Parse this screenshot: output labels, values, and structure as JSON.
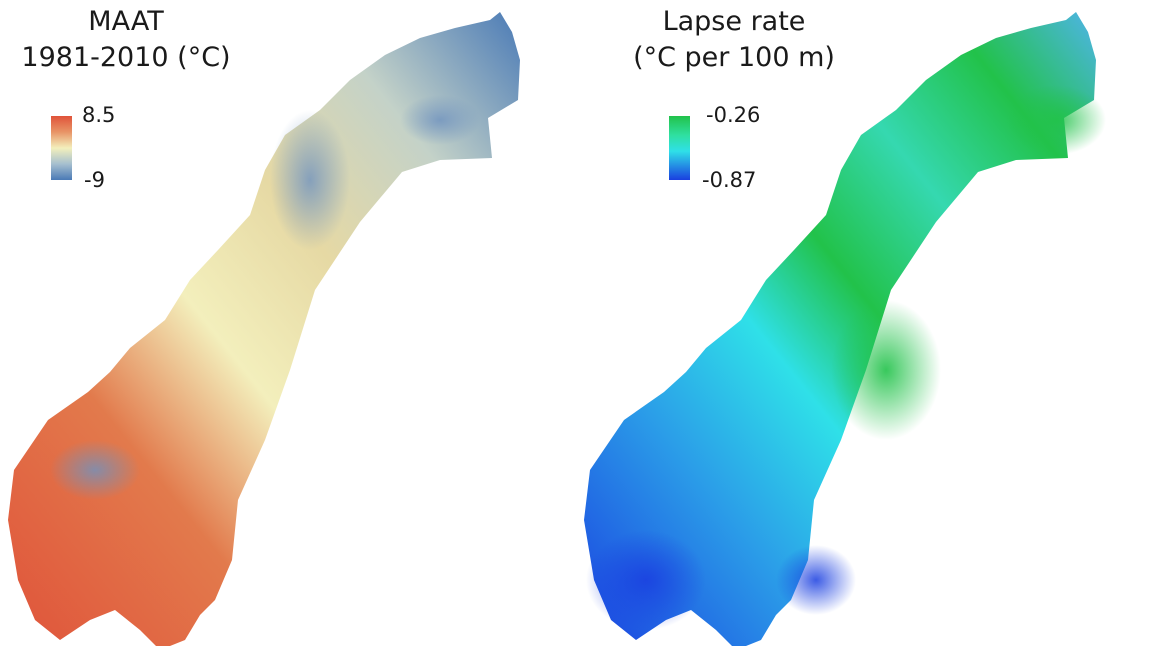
{
  "maat_panel": {
    "title_line1": "MAAT",
    "title_line2": "1981-2010 (°C)",
    "legend_max": "8.5",
    "legend_min": "-9",
    "colors": {
      "warm": "#e0533a",
      "mid": "#f3efbc",
      "cold": "#4a7ab6"
    }
  },
  "lapse_panel": {
    "title_line1": "Lapse rate",
    "title_line2": "(°C per 100 m)",
    "legend_max": "-0.26",
    "legend_min": "-0.87",
    "colors": {
      "high": "#22c24a",
      "mid": "#2fe0e8",
      "low": "#1a3fe0"
    }
  }
}
